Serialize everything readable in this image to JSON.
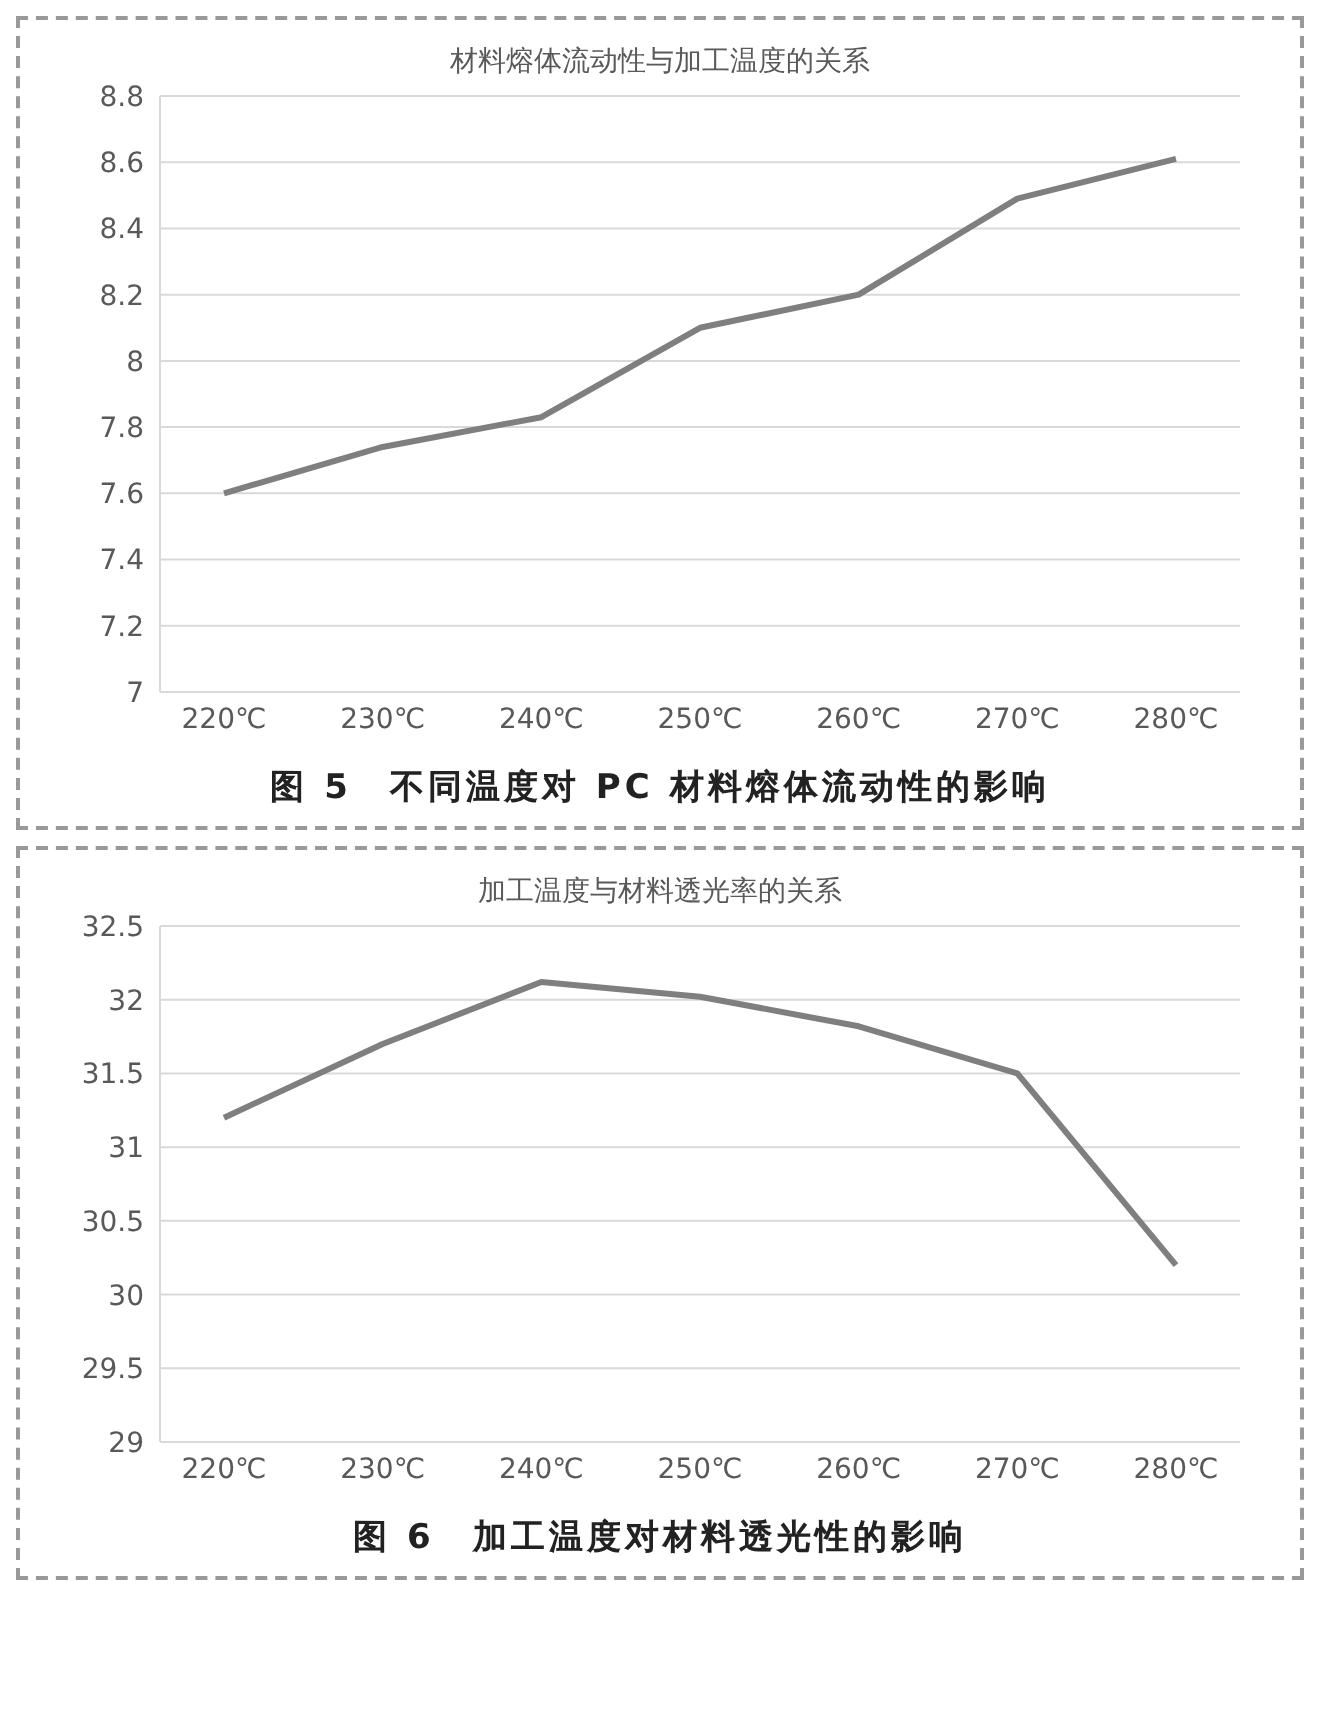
{
  "chart_data": [
    {
      "type": "line",
      "title": "材料熔体流动性与加工温度的关系",
      "categories": [
        "220℃",
        "230℃",
        "240℃",
        "250℃",
        "260℃",
        "270℃",
        "280℃"
      ],
      "series": [
        {
          "color": "#7f7f7f",
          "values": [
            7.6,
            7.74,
            7.83,
            8.1,
            8.2,
            8.49,
            8.61
          ]
        }
      ],
      "ylim": [
        7,
        8.8
      ],
      "yticks": [
        7,
        7.2,
        7.4,
        7.6,
        7.8,
        8,
        8.2,
        8.4,
        8.6,
        8.8
      ],
      "grid": "y",
      "marker": "none",
      "annotations": [
        "图 5　不同温度对 PC 材料熔体流动性的影响"
      ]
    },
    {
      "type": "line",
      "title": "加工温度与材料透光率的关系",
      "categories": [
        "220℃",
        "230℃",
        "240℃",
        "250℃",
        "260℃",
        "270℃",
        "280℃"
      ],
      "series": [
        {
          "color": "#7f7f7f",
          "values": [
            31.2,
            31.7,
            32.12,
            32.02,
            31.82,
            31.5,
            30.2
          ]
        }
      ],
      "ylim": [
        29,
        32.5
      ],
      "yticks": [
        29,
        29.5,
        30,
        30.5,
        31,
        31.5,
        32,
        32.5
      ],
      "grid": "y",
      "marker": "none",
      "annotations": [
        "图 6　加工温度对材料透光性的影响"
      ]
    }
  ]
}
